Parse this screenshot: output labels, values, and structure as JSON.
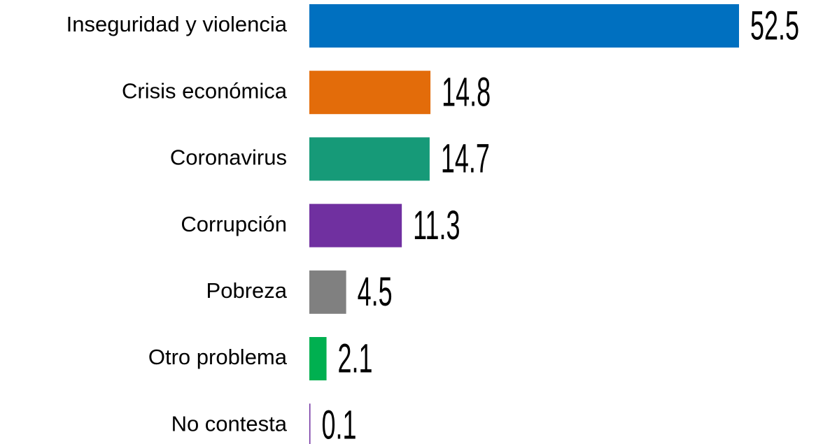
{
  "chart_data": {
    "type": "bar",
    "orientation": "horizontal",
    "categories": [
      "Inseguridad y violencia",
      "Crisis económica",
      "Coronavirus",
      "Corrupción",
      "Pobreza",
      "Otro problema",
      "No contesta"
    ],
    "values": [
      52.5,
      14.8,
      14.7,
      11.3,
      4.5,
      2.1,
      0.1
    ],
    "colors": [
      "#0070c0",
      "#e36c0a",
      "#169a78",
      "#7030a0",
      "#808080",
      "#00b050",
      "#7030a0"
    ]
  }
}
